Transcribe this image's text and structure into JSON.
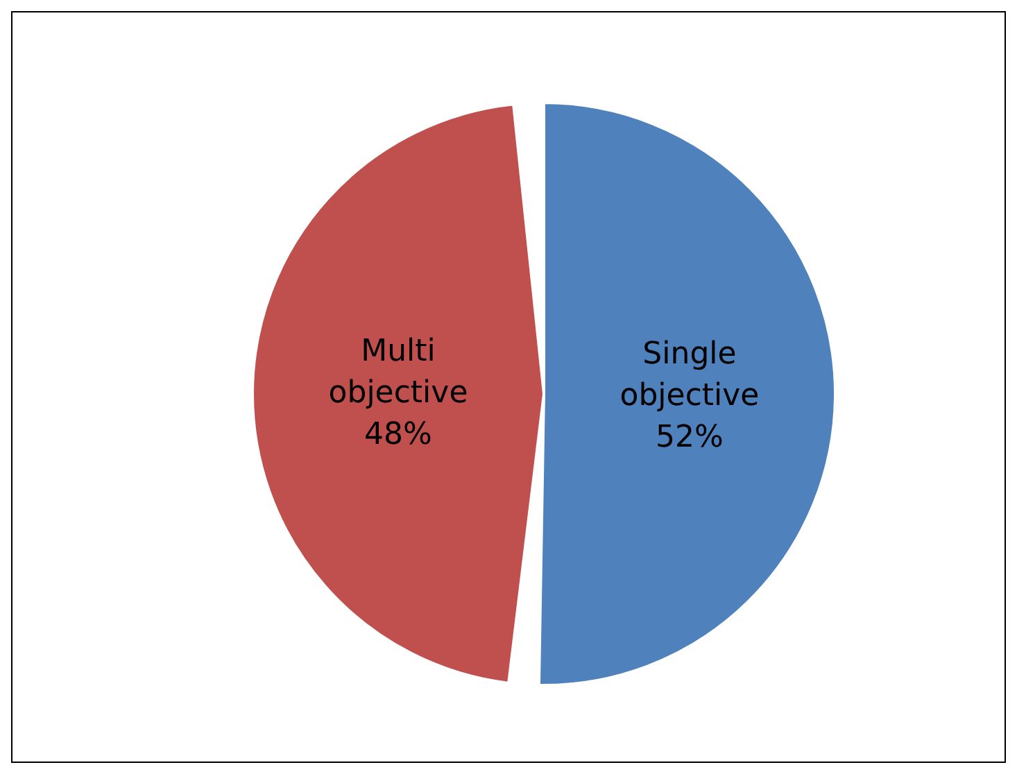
{
  "chart_data": {
    "type": "pie",
    "categories": [
      "Single objective",
      "Multi objective"
    ],
    "values": [
      52,
      48
    ],
    "colors": [
      "#4f81bd",
      "#c0504d"
    ],
    "value_labels": [
      "52%",
      "48%"
    ],
    "legend": false
  }
}
